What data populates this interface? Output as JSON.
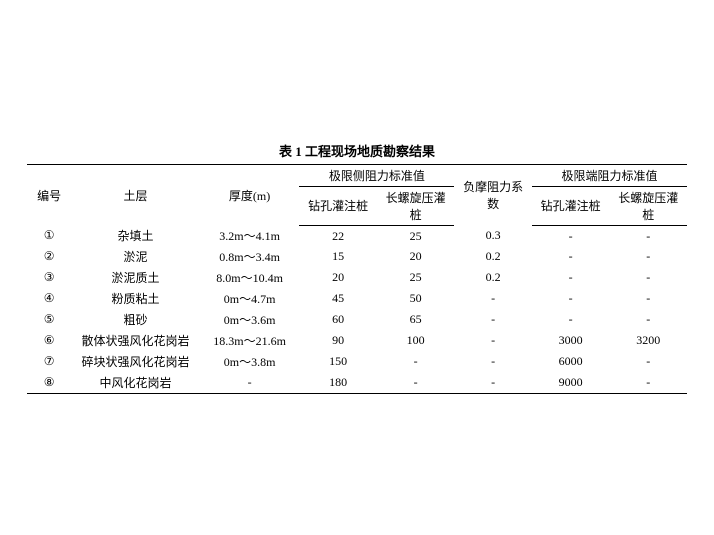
{
  "title": "表 1 工程现场地质勘察结果",
  "headers": {
    "num": "编号",
    "layer": "土层",
    "thickness": "厚度(m)",
    "lateral_group": "极限侧阻力标准值",
    "negative": "负摩阻力系数",
    "end_group": "极限端阻力标准值",
    "drill": "钻孔灌注桩",
    "screw": "长螺旋压灌桩"
  },
  "rows": [
    {
      "num": "①",
      "layer": "杂填土",
      "thick": "3.2m～4.1m",
      "lat_drill": "22",
      "lat_screw": "25",
      "neg": "0.3",
      "end_drill": "-",
      "end_screw": "-"
    },
    {
      "num": "②",
      "layer": "淤泥",
      "thick": "0.8m～3.4m",
      "lat_drill": "15",
      "lat_screw": "20",
      "neg": "0.2",
      "end_drill": "-",
      "end_screw": "-"
    },
    {
      "num": "③",
      "layer": "淤泥质土",
      "thick": "8.0m～10.4m",
      "lat_drill": "20",
      "lat_screw": "25",
      "neg": "0.2",
      "end_drill": "-",
      "end_screw": "-"
    },
    {
      "num": "④",
      "layer": "粉质粘土",
      "thick": "0m～4.7m",
      "lat_drill": "45",
      "lat_screw": "50",
      "neg": "-",
      "end_drill": "-",
      "end_screw": "-"
    },
    {
      "num": "⑤",
      "layer": "粗砂",
      "thick": "0m～3.6m",
      "lat_drill": "60",
      "lat_screw": "65",
      "neg": "-",
      "end_drill": "-",
      "end_screw": "-"
    },
    {
      "num": "⑥",
      "layer": "散体状强风化花岗岩",
      "thick": "18.3m～21.6m",
      "lat_drill": "90",
      "lat_screw": "100",
      "neg": "-",
      "end_drill": "3000",
      "end_screw": "3200"
    },
    {
      "num": "⑦",
      "layer": "碎块状强风化花岗岩",
      "thick": "0m～3.8m",
      "lat_drill": "150",
      "lat_screw": "-",
      "neg": "-",
      "end_drill": "6000",
      "end_screw": "-"
    },
    {
      "num": "⑧",
      "layer": "中风化花岗岩",
      "thick": "-",
      "lat_drill": "180",
      "lat_screw": "-",
      "neg": "-",
      "end_drill": "9000",
      "end_screw": "-"
    }
  ]
}
